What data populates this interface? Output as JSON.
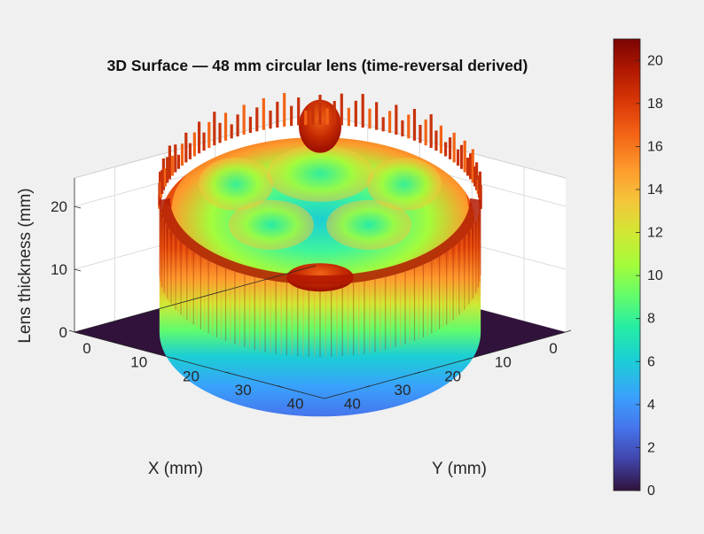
{
  "chart_data": {
    "type": "surface",
    "title": "3D Surface — 48 mm circular lens (time-reversal derived)",
    "xlabel": "X (mm)",
    "ylabel": "Y (mm)",
    "zlabel": "Lens thickness (mm)",
    "xlim": [
      0,
      48
    ],
    "ylim": [
      0,
      48
    ],
    "zlim": [
      0,
      21
    ],
    "x_ticks": [
      0,
      10,
      20,
      30,
      40
    ],
    "y_ticks": [
      0,
      10,
      20,
      30,
      40
    ],
    "z_ticks": [
      0,
      10,
      20
    ],
    "colorbar_ticks": [
      0,
      2,
      4,
      6,
      8,
      10,
      12,
      14,
      16,
      18,
      20
    ],
    "colorbar_range": [
      0,
      21
    ],
    "colormap": "turbo",
    "lens": {
      "center_mm": [
        24,
        24
      ],
      "radius_mm": 24,
      "outer_rim_thickness_mm": 21,
      "center_thickness_mm": 9,
      "inner_bump_thickness_mm": 20
    },
    "outside_value_mm": 0,
    "grid": true
  }
}
